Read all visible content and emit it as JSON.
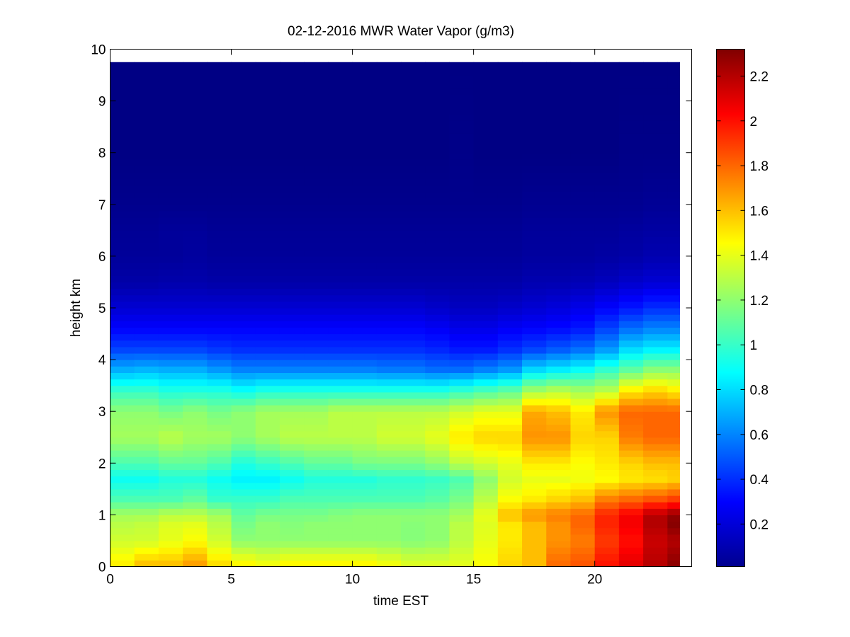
{
  "chart_data": {
    "type": "heatmap",
    "title": "02-12-2016 MWR Water Vapor (g/m3)",
    "xlabel": "time EST",
    "ylabel": "height km",
    "xlim": [
      0,
      24
    ],
    "ylim": [
      0,
      10
    ],
    "xticks": [
      0,
      5,
      10,
      15,
      20
    ],
    "yticks": [
      0,
      1,
      2,
      3,
      4,
      5,
      6,
      7,
      8,
      9,
      10
    ],
    "colormap": "jet",
    "colorbar": {
      "range": [
        0.01,
        2.32
      ],
      "ticks": [
        0.2,
        0.4,
        0.6,
        0.8,
        1,
        1.2,
        1.4,
        1.6,
        1.8,
        2,
        2.2
      ],
      "tick_labels": [
        "0.2",
        "0.4",
        "0.6",
        "0.8",
        "1",
        "1.2",
        "1.4",
        "1.6",
        "1.8",
        "2",
        "2.2"
      ]
    },
    "x_extent": [
      0,
      23.5
    ],
    "y_extent": [
      0,
      9.75
    ],
    "grid": false,
    "legend": "none",
    "time_columns_est": [
      0,
      1,
      2,
      3,
      4,
      5,
      6,
      7,
      8,
      9,
      10,
      11,
      12,
      13,
      14,
      15,
      16,
      17,
      18,
      19,
      20,
      21,
      22,
      23
    ],
    "profile_heights_km": [
      0,
      0.5,
      0.8,
      1.0,
      1.3,
      1.7,
      2.0,
      2.5,
      3.0,
      3.4,
      3.8,
      4.2,
      4.6,
      5.0,
      5.5,
      6.0,
      6.5,
      7.0,
      8.0,
      9.75
    ],
    "profiles": [
      [
        1.5,
        1.35,
        1.3,
        1.25,
        1.05,
        0.9,
        1.05,
        1.25,
        1.2,
        1.0,
        0.7,
        0.45,
        0.3,
        0.2,
        0.1,
        0.07,
        0.06,
        0.04,
        0.02,
        0.02
      ],
      [
        1.62,
        1.35,
        1.32,
        1.25,
        1.05,
        0.9,
        1.05,
        1.25,
        1.2,
        1.0,
        0.72,
        0.45,
        0.3,
        0.2,
        0.1,
        0.07,
        0.06,
        0.04,
        0.02,
        0.02
      ],
      [
        1.62,
        1.4,
        1.38,
        1.3,
        1.05,
        0.95,
        1.1,
        1.3,
        1.15,
        0.95,
        0.7,
        0.45,
        0.3,
        0.2,
        0.11,
        0.07,
        0.07,
        0.04,
        0.02,
        0.02
      ],
      [
        1.7,
        1.45,
        1.4,
        1.3,
        1.1,
        0.95,
        1.1,
        1.25,
        1.2,
        0.95,
        0.7,
        0.45,
        0.3,
        0.2,
        0.11,
        0.08,
        0.07,
        0.04,
        0.02,
        0.02
      ],
      [
        1.55,
        1.35,
        1.3,
        1.25,
        1.0,
        0.9,
        1.05,
        1.25,
        1.15,
        0.95,
        0.65,
        0.42,
        0.3,
        0.2,
        0.1,
        0.07,
        0.06,
        0.04,
        0.02,
        0.02
      ],
      [
        1.5,
        1.2,
        1.15,
        1.1,
        1.0,
        0.85,
        0.95,
        1.2,
        1.2,
        0.9,
        0.6,
        0.4,
        0.3,
        0.2,
        0.1,
        0.07,
        0.06,
        0.04,
        0.02,
        0.02
      ],
      [
        1.45,
        1.2,
        1.2,
        1.15,
        1.0,
        0.85,
        1.0,
        1.25,
        1.25,
        0.95,
        0.6,
        0.4,
        0.3,
        0.2,
        0.1,
        0.07,
        0.06,
        0.04,
        0.02,
        0.02
      ],
      [
        1.5,
        1.2,
        1.18,
        1.15,
        1.05,
        0.9,
        1.05,
        1.3,
        1.25,
        0.95,
        0.6,
        0.4,
        0.3,
        0.2,
        0.1,
        0.07,
        0.06,
        0.04,
        0.02,
        0.02
      ],
      [
        1.5,
        1.2,
        1.2,
        1.15,
        1.05,
        0.95,
        1.1,
        1.3,
        1.25,
        0.95,
        0.6,
        0.4,
        0.3,
        0.2,
        0.1,
        0.07,
        0.06,
        0.04,
        0.02,
        0.02
      ],
      [
        1.5,
        1.2,
        1.2,
        1.18,
        1.05,
        0.95,
        1.1,
        1.3,
        1.3,
        0.95,
        0.6,
        0.4,
        0.3,
        0.2,
        0.1,
        0.07,
        0.06,
        0.04,
        0.02,
        0.02
      ],
      [
        1.5,
        1.2,
        1.2,
        1.2,
        1.05,
        0.95,
        1.15,
        1.3,
        1.3,
        0.95,
        0.6,
        0.4,
        0.3,
        0.2,
        0.1,
        0.07,
        0.06,
        0.04,
        0.02,
        0.02
      ],
      [
        1.45,
        1.2,
        1.2,
        1.2,
        1.05,
        0.98,
        1.15,
        1.35,
        1.3,
        0.95,
        0.58,
        0.4,
        0.3,
        0.2,
        0.1,
        0.07,
        0.06,
        0.04,
        0.02,
        0.02
      ],
      [
        1.4,
        1.18,
        1.18,
        1.2,
        1.05,
        0.98,
        1.15,
        1.35,
        1.3,
        0.95,
        0.58,
        0.4,
        0.3,
        0.2,
        0.1,
        0.07,
        0.06,
        0.04,
        0.02,
        0.02
      ],
      [
        1.4,
        1.2,
        1.2,
        1.2,
        1.08,
        1.0,
        1.2,
        1.4,
        1.3,
        0.95,
        0.55,
        0.38,
        0.28,
        0.18,
        0.1,
        0.07,
        0.06,
        0.04,
        0.02,
        0.02
      ],
      [
        1.4,
        1.3,
        1.3,
        1.25,
        1.15,
        1.05,
        1.3,
        1.5,
        1.35,
        1.0,
        0.55,
        0.35,
        0.25,
        0.16,
        0.1,
        0.07,
        0.06,
        0.04,
        0.03,
        0.02
      ],
      [
        1.45,
        1.4,
        1.38,
        1.4,
        1.3,
        1.2,
        1.35,
        1.55,
        1.4,
        1.05,
        0.6,
        0.35,
        0.25,
        0.16,
        0.1,
        0.07,
        0.06,
        0.04,
        0.02,
        0.02
      ],
      [
        1.55,
        1.5,
        1.5,
        1.6,
        1.45,
        1.35,
        1.4,
        1.55,
        1.4,
        1.1,
        0.65,
        0.4,
        0.28,
        0.18,
        0.1,
        0.07,
        0.06,
        0.04,
        0.02,
        0.02
      ],
      [
        1.6,
        1.6,
        1.6,
        1.7,
        1.5,
        1.4,
        1.5,
        1.7,
        1.65,
        1.25,
        0.8,
        0.45,
        0.3,
        0.2,
        0.12,
        0.08,
        0.07,
        0.05,
        0.02,
        0.02
      ],
      [
        1.8,
        1.7,
        1.7,
        1.75,
        1.55,
        1.4,
        1.5,
        1.7,
        1.6,
        1.3,
        0.85,
        0.5,
        0.32,
        0.22,
        0.12,
        0.08,
        0.07,
        0.05,
        0.02,
        0.02
      ],
      [
        1.85,
        1.75,
        1.8,
        1.8,
        1.6,
        1.42,
        1.45,
        1.55,
        1.5,
        1.25,
        0.9,
        0.55,
        0.35,
        0.25,
        0.13,
        0.08,
        0.07,
        0.05,
        0.02,
        0.02
      ],
      [
        2.0,
        1.9,
        1.95,
        1.95,
        1.75,
        1.45,
        1.5,
        1.55,
        1.7,
        1.3,
        1.0,
        0.65,
        0.45,
        0.3,
        0.15,
        0.09,
        0.07,
        0.05,
        0.02,
        0.02
      ],
      [
        2.1,
        2.0,
        2.05,
        2.05,
        1.8,
        1.5,
        1.55,
        1.75,
        1.8,
        1.5,
        1.1,
        0.8,
        0.55,
        0.35,
        0.18,
        0.1,
        0.08,
        0.05,
        0.03,
        0.02
      ],
      [
        2.2,
        2.15,
        2.2,
        2.2,
        1.85,
        1.52,
        1.6,
        1.8,
        1.8,
        1.55,
        1.2,
        0.85,
        0.6,
        0.4,
        0.2,
        0.12,
        0.09,
        0.06,
        0.03,
        0.02
      ],
      [
        2.3,
        2.2,
        2.3,
        2.28,
        1.9,
        1.55,
        1.6,
        1.8,
        1.8,
        1.5,
        1.2,
        0.85,
        0.6,
        0.4,
        0.2,
        0.12,
        0.09,
        0.06,
        0.03,
        0.02
      ]
    ]
  }
}
